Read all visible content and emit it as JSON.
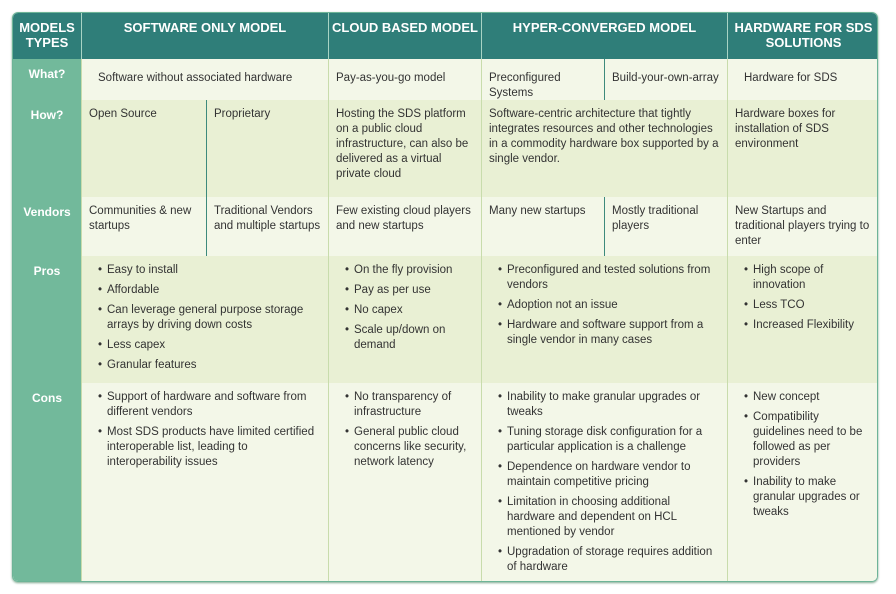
{
  "header": {
    "models_types": "MODELS TYPES",
    "software": "SOFTWARE ONLY MODEL",
    "cloud": "CLOUD BASED MODEL",
    "hyper": "HYPER-CONVERGED MODEL",
    "hardware": "HARDWARE FOR SDS SOLUTIONS"
  },
  "rows": {
    "what": {
      "label": "What?",
      "software": "Software without associated hardware",
      "cloud": "Pay-as-you-go model",
      "hyper_a": "Preconfigured Systems",
      "hyper_b": "Build-your-own-array",
      "hardware": "Hardware for SDS"
    },
    "how": {
      "label": "How?",
      "software_a": "Open Source",
      "software_b": "Proprietary",
      "cloud": "Hosting the SDS platform on a public cloud infrastructure, can also be delivered as a virtual private cloud",
      "hyper": "Software-centric architecture that tightly integrates resources and other technologies in a commodity hardware box supported by a single vendor.",
      "hardware": "Hardware boxes for installation of SDS environment"
    },
    "vendors": {
      "label": "Vendors",
      "software_a": "Communities & new startups",
      "software_b": "Traditional Vendors and multiple startups",
      "cloud": "Few existing cloud players and new startups",
      "hyper_a": "Many new startups",
      "hyper_b": "Mostly traditional players",
      "hardware": "New Startups and traditional players trying to enter"
    },
    "pros": {
      "label": "Pros",
      "software": [
        "Easy to install",
        "Affordable",
        "Can leverage general purpose storage arrays by driving down costs",
        "Less capex",
        "Granular features"
      ],
      "cloud": [
        "On the fly provision",
        "Pay as per use",
        "No capex",
        "Scale up/down on demand"
      ],
      "hyper": [
        "Preconfigured and tested solutions from vendors",
        "Adoption not an issue",
        "Hardware and software support from a single vendor in many cases"
      ],
      "hardware": [
        "High scope of innovation",
        "Less TCO",
        "Increased Flexibility"
      ]
    },
    "cons": {
      "label": "Cons",
      "software": [
        "Support of hardware and software from different vendors",
        "Most SDS products have limited certified interoperable list, leading to interoperability issues"
      ],
      "cloud": [
        "No transparency of infrastructure",
        "General public cloud concerns like security, network latency"
      ],
      "hyper": [
        "Inability to make granular upgrades or tweaks",
        "Tuning storage disk configuration for a particular application is a challenge",
        "Dependence on hardware vendor to maintain competitive pricing",
        "Limitation in choosing additional hardware and dependent on HCL mentioned by vendor",
        "Upgradation of storage requires addition of hardware"
      ],
      "hardware": [
        "New concept",
        "Compatibility guidelines need to be followed as per providers",
        "Inability to make granular upgrades or tweaks"
      ]
    }
  }
}
